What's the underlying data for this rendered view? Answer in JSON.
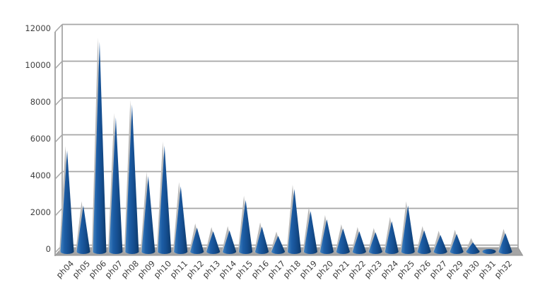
{
  "page": {
    "background": "#ffffff"
  },
  "chart_data": {
    "type": "bar",
    "style": "3d-cone-spikes",
    "title": "",
    "xlabel": "",
    "ylabel": "",
    "categories": [
      "ph04",
      "ph05",
      "ph06",
      "ph07",
      "ph08",
      "ph09",
      "ph10",
      "ph11",
      "ph12",
      "ph13",
      "ph14",
      "ph15",
      "ph16",
      "ph17",
      "ph18",
      "ph19",
      "ph20",
      "ph21",
      "ph22",
      "ph23",
      "ph24",
      "ph25",
      "ph26",
      "ph27",
      "ph29",
      "ph30",
      "ph31",
      "ph32"
    ],
    "values": [
      5500,
      2500,
      11400,
      7300,
      8000,
      4100,
      5750,
      3550,
      1300,
      1100,
      1150,
      2800,
      1350,
      850,
      3400,
      2200,
      1750,
      1250,
      1100,
      1050,
      1650,
      2500,
      1150,
      900,
      950,
      500,
      60,
      1000
    ],
    "ylim": [
      0,
      12000
    ],
    "ytick_labels": [
      "0",
      "2000",
      "4000",
      "6000",
      "8000",
      "10000",
      "12000"
    ],
    "grid": true,
    "legend": false,
    "colors": {
      "cone_light": "#4584c0",
      "cone_mid": "#1d5ea6",
      "cone_mid2": "#154e90",
      "cone_dark": "#0d3a6b",
      "shadow": "#b9b9b9",
      "gridline": "#a6a6a6",
      "floor": "#a5a5a5",
      "floor_edge": "#949494",
      "text": "#3f3f3f"
    }
  }
}
